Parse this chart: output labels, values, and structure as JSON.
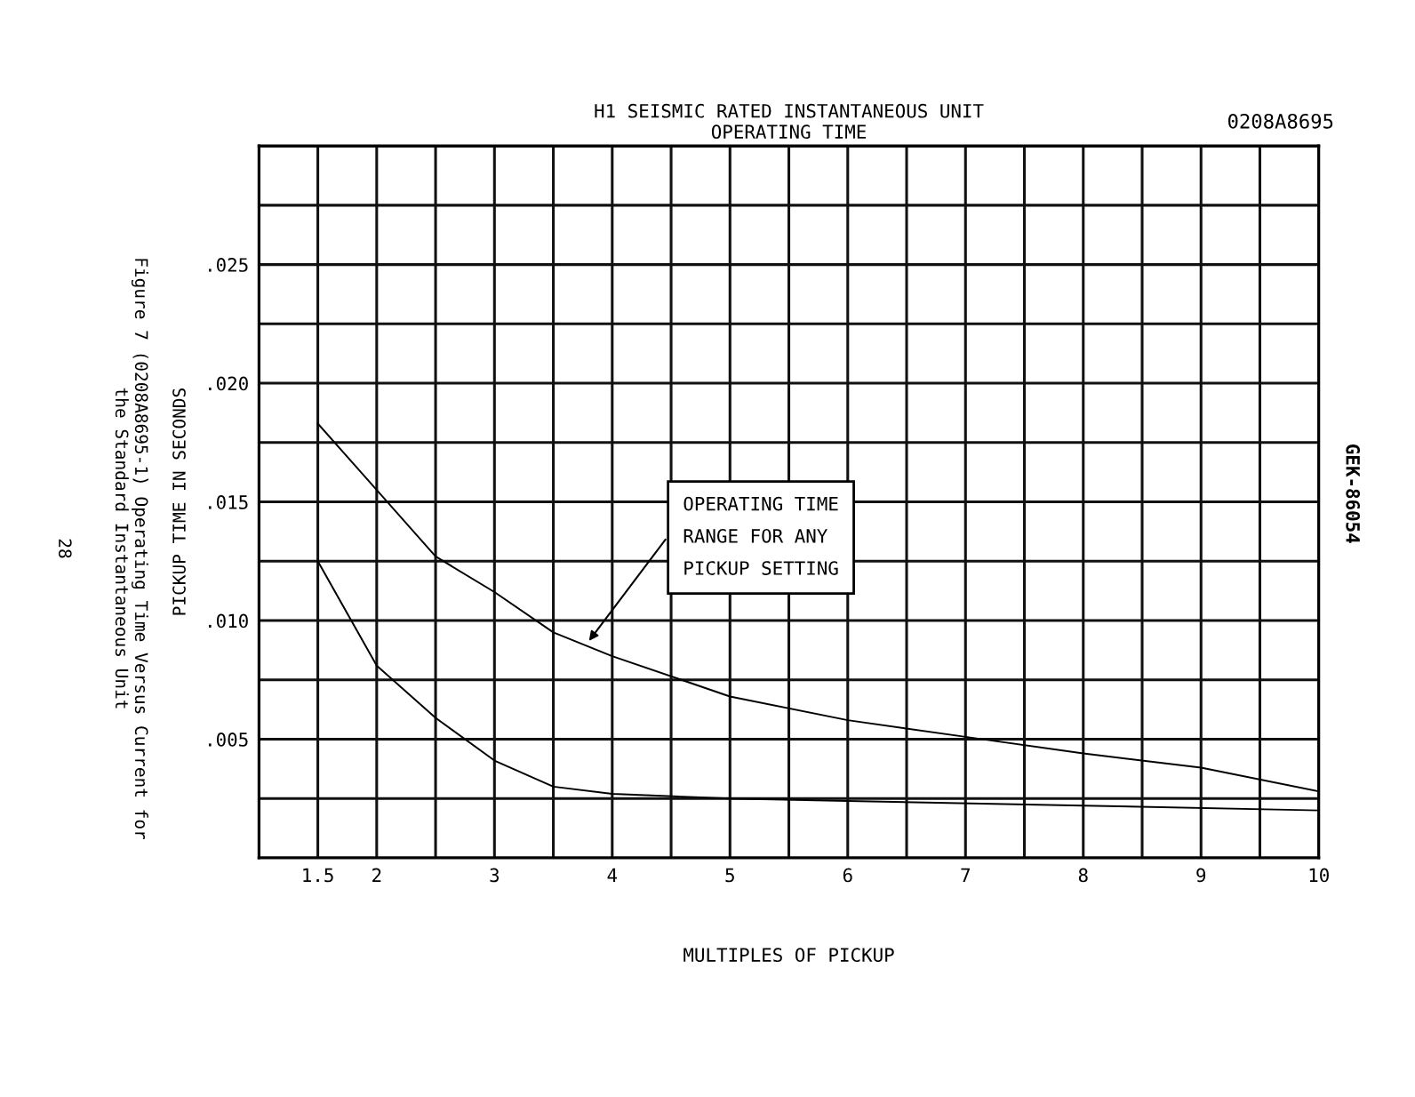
{
  "chart_data": {
    "type": "line",
    "title": "H1 SEISMIC RATED INSTANTANEOUS UNIT\nOPERATING TIME",
    "xlabel": "MULTIPLES OF PICKUP",
    "ylabel": "PICKUP TIME IN SECONDS",
    "series": [
      {
        "color": "#000000",
        "x": [
          1.5,
          2,
          2.5,
          3,
          3.5,
          4,
          5,
          6,
          7,
          8,
          9,
          10
        ],
        "values": [
          0.0183,
          0.0155,
          0.0127,
          0.0112,
          0.0095,
          0.0085,
          0.0068,
          0.0058,
          0.0051,
          0.0044,
          0.0038,
          0.0028
        ]
      },
      {
        "color": "#000000",
        "x": [
          1.5,
          2,
          2.5,
          3,
          3.5,
          4,
          5,
          6,
          8,
          10
        ],
        "values": [
          0.0125,
          0.0081,
          0.0059,
          0.0041,
          0.003,
          0.0027,
          0.0025,
          0.0024,
          0.0022,
          0.002
        ]
      }
    ],
    "xlim": [
      1,
      10
    ],
    "ylim": [
      0,
      0.03
    ],
    "xticks": [
      {
        "value": 1,
        "label": null
      },
      1.5,
      2,
      {
        "value": 2.5,
        "label": null
      },
      3,
      {
        "value": 3.5,
        "label": null
      },
      4,
      {
        "value": 4.5,
        "label": null
      },
      5,
      {
        "value": 5.5,
        "label": null
      },
      6,
      {
        "value": 6.5,
        "label": null
      },
      7,
      {
        "value": 7.5,
        "label": null
      },
      8,
      {
        "value": 8.5,
        "label": null
      },
      9,
      {
        "value": 9.5,
        "label": null
      },
      10
    ],
    "yticks": [
      {
        "value": 0,
        "label": null
      },
      {
        "value": 0.0025,
        "label": null
      },
      {
        "value": 0.005,
        "label": ".005"
      },
      {
        "value": 0.0075,
        "label": null
      },
      {
        "value": 0.01,
        "label": ".010"
      },
      {
        "value": 0.0125,
        "label": null
      },
      {
        "value": 0.015,
        "label": ".015"
      },
      {
        "value": 0.0175,
        "label": null
      },
      {
        "value": 0.02,
        "label": ".020"
      },
      {
        "value": 0.0225,
        "label": null
      },
      {
        "value": 0.025,
        "label": ".025"
      },
      {
        "value": 0.0275,
        "label": null
      },
      {
        "value": 0.03,
        "label": null
      }
    ],
    "grid": true,
    "marker": "none",
    "line_style": "solid",
    "annotations": [
      "OPERATING TIME\nRANGE FOR ANY\nPICKUP SETTING",
      "0208A8695",
      "Figure 7 (0208A8695-1) Operating Time Versus Current for\nthe Standard Instantaneous Unit",
      "28",
      "GEK-86054"
    ]
  }
}
